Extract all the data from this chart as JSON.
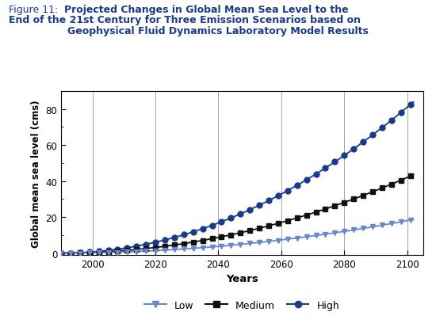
{
  "title_line1_prefix": "Figure 11:",
  "title_line1_bold": "   Projected Changes in Global Mean Sea Level to the",
  "title_line2": "End of the 21st Century for Three Emission Scenarios based on",
  "title_line3": "Geophysical Fluid Dynamics Laboratory Model Results",
  "xlabel": "Years",
  "ylabel": "Global mean sea level (cms)",
  "xlim": [
    1990,
    2105
  ],
  "ylim": [
    -1,
    90
  ],
  "xticks": [
    2000,
    2020,
    2040,
    2060,
    2080,
    2100
  ],
  "yticks": [
    0,
    20,
    40,
    60,
    80
  ],
  "grid_color": "#999999",
  "title_color": "#1a3a8a",
  "t0": 1990,
  "a_low": 0.0,
  "b_low": 0.001527,
  "a_med": 0.0,
  "b_med": 0.003636,
  "a_high": 0.0,
  "b_high": 0.007438,
  "low_color": "#6688cc",
  "medium_color": "#111111",
  "high_color": "#1a3a8a",
  "low_label": "Low",
  "medium_label": "Medium",
  "high_label": "High",
  "marker_interval": 3,
  "fig_width": 5.5,
  "fig_height": 4.14,
  "dpi": 100
}
